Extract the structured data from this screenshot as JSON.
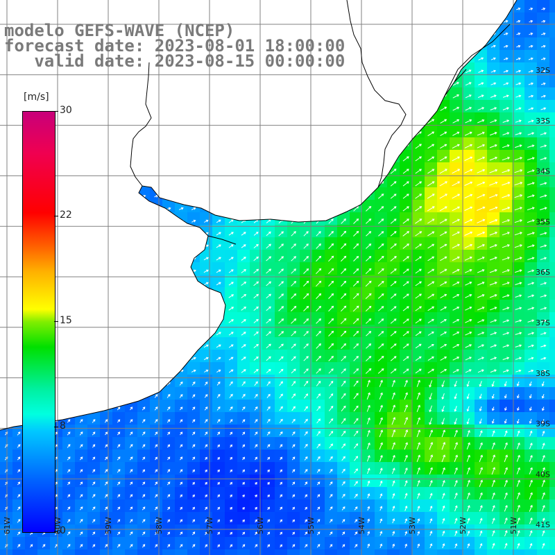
{
  "title": {
    "line1": "modelo GEFS-WAVE (NCEP)",
    "line2": "forecast date: 2023-08-01 18:00:00",
    "line3": "   valid date: 2023-08-15 00:00:00"
  },
  "colorbar": {
    "unit": "[m/s]",
    "ticks": [
      "30",
      "22",
      "15",
      "8",
      "0"
    ],
    "colors": [
      "#0000ff",
      "#00c8ff",
      "#00e000",
      "#ffff00",
      "#ff6000",
      "#ff0000",
      "#c8007a"
    ]
  },
  "axes": {
    "lat_labels": [
      "32S",
      "33S",
      "34S",
      "35S",
      "36S",
      "37S",
      "38S",
      "39S",
      "40S",
      "41S"
    ],
    "lon_labels": [
      "61W",
      "60W",
      "59W",
      "58W",
      "57W",
      "56W",
      "55W",
      "54W",
      "53W",
      "52W",
      "51W"
    ]
  },
  "colors": {
    "grid": "#808080",
    "coast": "#000000",
    "land": "#ffffff"
  }
}
